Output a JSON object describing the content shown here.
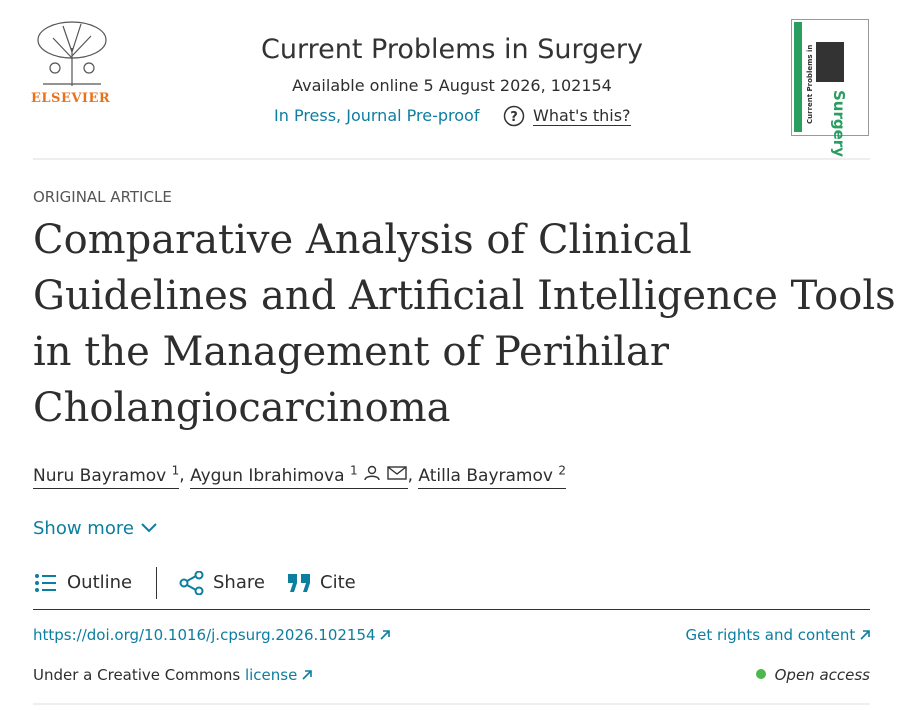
{
  "header": {
    "publisher": "ELSEVIER",
    "journal": "Current Problems in Surgery",
    "available": "Available online 5 August 2026, 102154",
    "status": "In Press, Journal Pre-proof",
    "help": "What's this?",
    "cover": {
      "line1": "Current Problems in",
      "line2": "Surgery"
    }
  },
  "article": {
    "type": "ORIGINAL ARTICLE",
    "title": [
      "Comparative Analysis of Clinical",
      "Guidelines and Artificial Intelligence Tools",
      "in the Management of Perihilar",
      "Cholangiocarcinoma"
    ],
    "authors": [
      {
        "name": "Nuru Bayramov",
        "sup": "1"
      },
      {
        "name": "Aygun Ibrahimova",
        "sup": "1"
      },
      {
        "name": "Atilla Bayramov",
        "sup": "2"
      }
    ],
    "show_more": "Show more"
  },
  "toolbar": {
    "outline": "Outline",
    "share": "Share",
    "cite": "Cite"
  },
  "links": {
    "doi": "https://doi.org/10.1016/j.cpsurg.2026.102154",
    "rights": "Get rights and content",
    "license_prefix": "Under a Creative Commons",
    "license": "license",
    "open_access": "Open access"
  }
}
